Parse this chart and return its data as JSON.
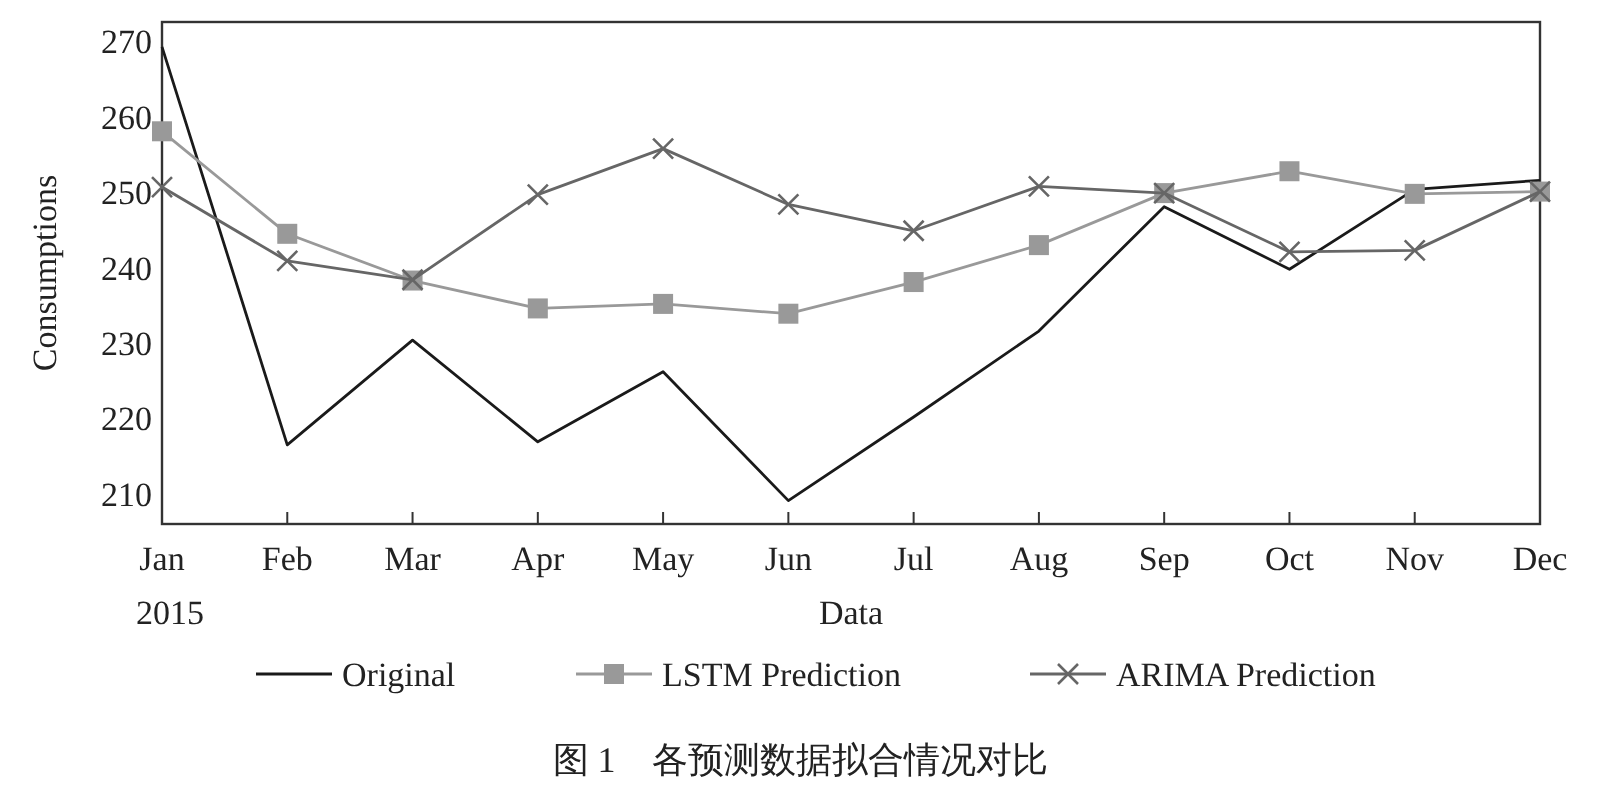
{
  "chart_data": {
    "type": "line",
    "title": "图 1　各预测数据拟合情况对比",
    "xlabel": "Data",
    "ylabel": "Consumptions",
    "annotations": [
      "2015"
    ],
    "categories": [
      "Jan",
      "Feb",
      "Mar",
      "Apr",
      "May",
      "Jun",
      "Jul",
      "Aug",
      "Sep",
      "Oct",
      "Nov",
      "Dec"
    ],
    "series": [
      {
        "name": "Original",
        "color": "#1a1a1a",
        "marker": "none",
        "values": [
          269.3,
          216.5,
          230.4,
          216.9,
          226.2,
          209.1,
          220.2,
          231.6,
          248.1,
          239.8,
          250.4,
          251.6
        ]
      },
      {
        "name": "LSTM Prediction",
        "color": "#999999",
        "marker": "square",
        "values": [
          258.1,
          244.5,
          238.3,
          234.6,
          235.2,
          233.9,
          238.1,
          243.0,
          249.9,
          252.8,
          249.8,
          250.1
        ]
      },
      {
        "name": "ARIMA Prediction",
        "color": "#666666",
        "marker": "cross",
        "values": [
          250.7,
          240.9,
          238.4,
          249.7,
          255.8,
          248.4,
          244.9,
          250.8,
          249.9,
          242.1,
          242.3,
          250.1
        ]
      }
    ],
    "ylim": [
      206,
      272.6
    ],
    "yticks": [
      210,
      220,
      230,
      240,
      250,
      260,
      270
    ],
    "grid": false,
    "legend": "bottom"
  }
}
